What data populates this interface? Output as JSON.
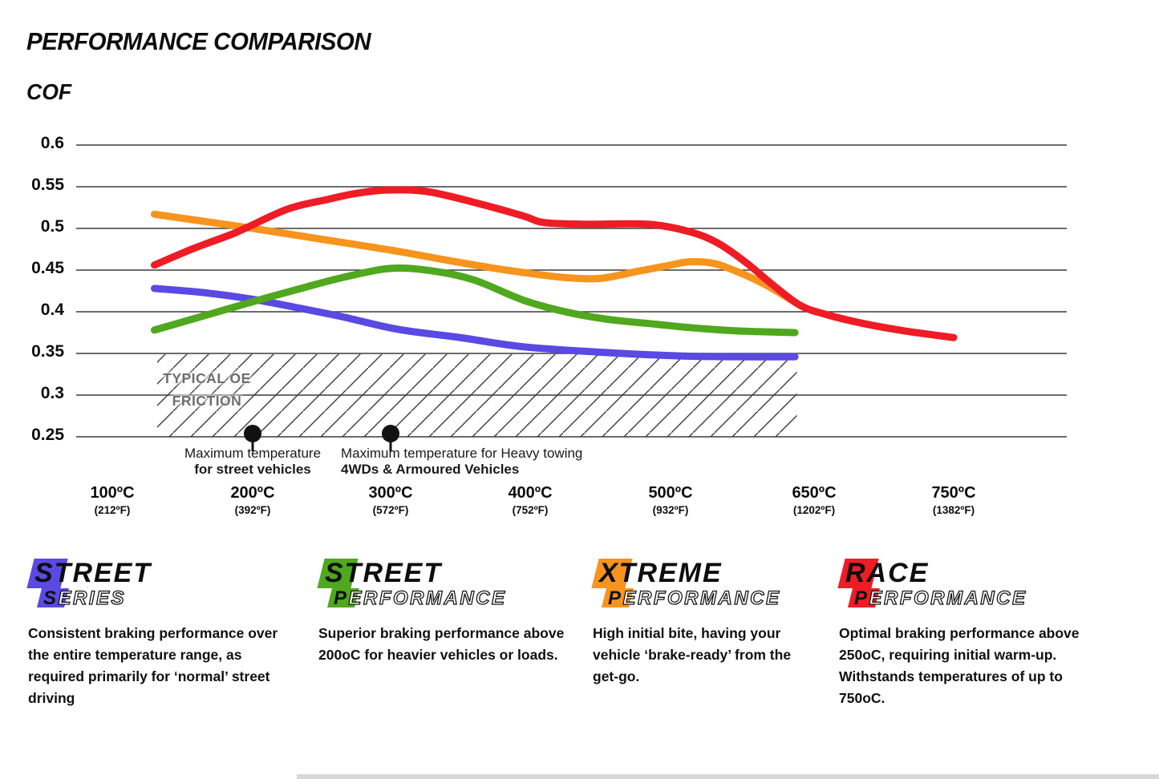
{
  "chart_data": {
    "type": "line",
    "title": "PERFORMANCE COMPARISON",
    "ylabel": "COF",
    "xlabel": "",
    "ylim": [
      0.25,
      0.6
    ],
    "grid": "horizontal",
    "legend_position": "bottom",
    "y_ticks": [
      "0.6",
      "0.55",
      "0.5",
      "0.45",
      "0.4",
      "0.35",
      "0.3",
      "0.25"
    ],
    "x_ticks": [
      {
        "value": 100,
        "celsius": "100ºC",
        "fahrenheit": "(212ºF)"
      },
      {
        "value": 200,
        "celsius": "200ºC",
        "fahrenheit": "(392ºF)"
      },
      {
        "value": 300,
        "celsius": "300ºC",
        "fahrenheit": "(572ºF)"
      },
      {
        "value": 400,
        "celsius": "400ºC",
        "fahrenheit": "(752ºF)"
      },
      {
        "value": 500,
        "celsius": "500ºC",
        "fahrenheit": "(932ºF)"
      },
      {
        "value": 650,
        "celsius": "650ºC",
        "fahrenheit": "(1202ºF)"
      },
      {
        "value": 750,
        "celsius": "750ºC",
        "fahrenheit": "(1382ºF)"
      }
    ],
    "series": [
      {
        "name": "Street Series",
        "color": "#5a49e2",
        "points": [
          [
            130,
            0.428
          ],
          [
            165,
            0.423
          ],
          [
            200,
            0.415
          ],
          [
            235,
            0.404
          ],
          [
            265,
            0.394
          ],
          [
            305,
            0.379
          ],
          [
            350,
            0.369
          ],
          [
            395,
            0.358
          ],
          [
            455,
            0.351
          ],
          [
            510,
            0.347
          ],
          [
            570,
            0.346
          ],
          [
            630,
            0.346
          ]
        ]
      },
      {
        "name": "Street Performance",
        "color": "#4fa81e",
        "points": [
          [
            130,
            0.378
          ],
          [
            165,
            0.395
          ],
          [
            200,
            0.412
          ],
          [
            235,
            0.428
          ],
          [
            265,
            0.441
          ],
          [
            300,
            0.452
          ],
          [
            330,
            0.449
          ],
          [
            360,
            0.438
          ],
          [
            395,
            0.414
          ],
          [
            425,
            0.4
          ],
          [
            455,
            0.391
          ],
          [
            490,
            0.385
          ],
          [
            520,
            0.381
          ],
          [
            570,
            0.377
          ],
          [
            630,
            0.375
          ]
        ]
      },
      {
        "name": "Xtreme Performance",
        "color": "#f7941d",
        "points": [
          [
            130,
            0.517
          ],
          [
            200,
            0.5
          ],
          [
            250,
            0.487
          ],
          [
            300,
            0.474
          ],
          [
            340,
            0.462
          ],
          [
            375,
            0.452
          ],
          [
            400,
            0.446
          ],
          [
            425,
            0.441
          ],
          [
            450,
            0.44
          ],
          [
            475,
            0.448
          ],
          [
            500,
            0.456
          ],
          [
            520,
            0.46
          ],
          [
            545,
            0.458
          ],
          [
            570,
            0.448
          ],
          [
            600,
            0.432
          ],
          [
            632,
            0.41
          ]
        ]
      },
      {
        "name": "Race Performance",
        "color": "#ee1c25",
        "points": [
          [
            130,
            0.456
          ],
          [
            158,
            0.476
          ],
          [
            188,
            0.495
          ],
          [
            225,
            0.523
          ],
          [
            255,
            0.535
          ],
          [
            275,
            0.542
          ],
          [
            298,
            0.546
          ],
          [
            327,
            0.544
          ],
          [
            365,
            0.529
          ],
          [
            395,
            0.515
          ],
          [
            410,
            0.507
          ],
          [
            440,
            0.505
          ],
          [
            484,
            0.505
          ],
          [
            520,
            0.496
          ],
          [
            550,
            0.482
          ],
          [
            580,
            0.458
          ],
          [
            605,
            0.434
          ],
          [
            635,
            0.408
          ],
          [
            658,
            0.397
          ],
          [
            685,
            0.386
          ],
          [
            715,
            0.377
          ],
          [
            750,
            0.369
          ]
        ]
      }
    ],
    "oe_band": {
      "label_line1": "TYPICAL OE",
      "label_line2": "FRICTION",
      "temp_range": [
        132,
        632
      ],
      "cof_range": [
        0.25,
        0.349
      ]
    },
    "markers": [
      {
        "temp": 200,
        "line1": "Maximum temperature",
        "line2": "for street vehicles"
      },
      {
        "temp": 300,
        "line1": "Maximum temperature for Heavy towing",
        "line2": "4WDs & Armoured Vehicles"
      }
    ]
  },
  "legend": [
    {
      "word1": "STREET",
      "word2_initial": "S",
      "word2_rest": "ERIES",
      "color": "#5a49e2",
      "description": "Consistent braking performance over the entire temperature range, as required primarily for ‘normal’ street driving"
    },
    {
      "word1": "STREET",
      "word2_initial": "P",
      "word2_rest": "ERFORMANCE",
      "color": "#4fa81e",
      "description": "Superior braking performance above 200oC for heavier vehicles or loads."
    },
    {
      "word1": "XTREME",
      "word2_initial": "P",
      "word2_rest": "ERFORMANCE",
      "color": "#f7941d",
      "description": "High initial bite, having your vehicle ‘brake-ready’ from the get-go."
    },
    {
      "word1": "RACE",
      "word2_initial": "P",
      "word2_rest": "ERFORMANCE",
      "color": "#ee1c25",
      "description": "Optimal braking performance above 250oC, requiring initial warm-up. Withstands temperatures of up to 750oC."
    }
  ]
}
